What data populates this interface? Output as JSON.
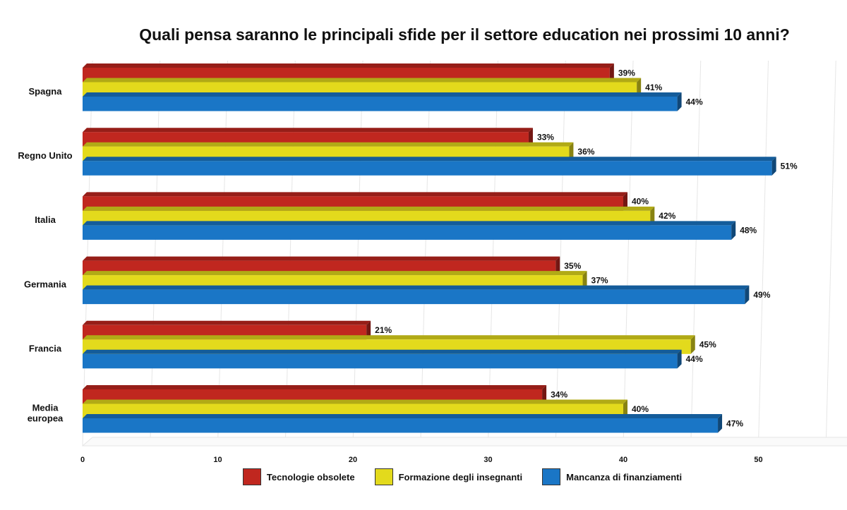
{
  "chart_data": {
    "type": "bar",
    "orientation": "horizontal",
    "title": "Quali pensa saranno le principali sfide per il settore education nei prossimi 10 anni?",
    "categories": [
      "Spagna",
      "Regno Unito",
      "Italia",
      "Germania",
      "Francia",
      [
        "Media",
        "europea"
      ]
    ],
    "series": [
      {
        "name": "Tecnologie obsolete",
        "color": "#c0271f",
        "values": [
          39,
          33,
          40,
          35,
          21,
          34
        ]
      },
      {
        "name": "Formazione degli insegnanti",
        "color": "#e3da1c",
        "values": [
          41,
          36,
          42,
          37,
          45,
          40
        ]
      },
      {
        "name": "Mancanza di finanziamenti",
        "color": "#1a76c6",
        "values": [
          44,
          51,
          48,
          49,
          44,
          47
        ]
      }
    ],
    "value_suffix": "%",
    "xlim": [
      0,
      55
    ],
    "xticks": [
      0,
      10,
      20,
      30,
      40,
      50
    ],
    "grid": true,
    "legend_position": "bottom"
  }
}
